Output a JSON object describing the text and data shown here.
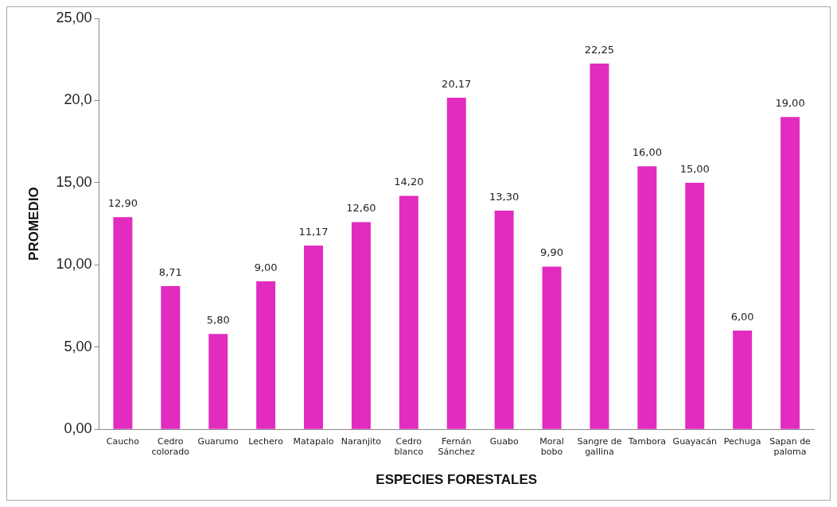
{
  "chart_data": {
    "type": "bar",
    "xlabel": "ESPECIES FORESTALES",
    "ylabel": "PROMEDIO",
    "categories": [
      "Caucho",
      "Cedro colorado",
      "Guarumo",
      "Lechero",
      "Matapalo",
      "Naranjito",
      "Cedro blanco",
      "Fernán Sánchez",
      "Guabo",
      "Moral bobo",
      "Sangre de gallina",
      "Tambora",
      "Guayacán",
      "Pechuga",
      "Sapan de paloma"
    ],
    "values": [
      12.9,
      8.71,
      5.8,
      9.0,
      11.17,
      12.6,
      14.2,
      20.17,
      13.3,
      9.9,
      22.25,
      16.0,
      15.0,
      6.0,
      19.0
    ],
    "value_labels": [
      "12,90",
      "8,71",
      "5,80",
      "9,00",
      "11,17",
      "12,60",
      "14,20",
      "20,17",
      "13,30",
      "9,90",
      "22,25",
      "16,00",
      "15,00",
      "6,00",
      "19,00"
    ],
    "color": "#e22cbf",
    "ylim": [
      0,
      25
    ],
    "yticks": [
      {
        "value": 0,
        "label": "0,00"
      },
      {
        "value": 5,
        "label": "5,00"
      },
      {
        "value": 10,
        "label": "10,00"
      },
      {
        "value": 15,
        "label": "15,00"
      },
      {
        "value": 20,
        "label": "20,0"
      },
      {
        "value": 25,
        "label": "25,00"
      }
    ],
    "grid": false,
    "legend": false
  }
}
